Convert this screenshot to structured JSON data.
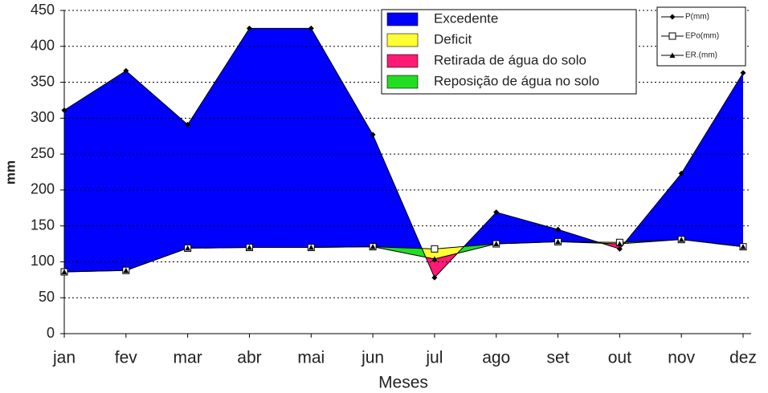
{
  "chart_data": {
    "type": "water-balance",
    "x_label": "Meses",
    "y_label": "mm",
    "categories": [
      "jan",
      "fev",
      "mar",
      "abr",
      "mai",
      "jun",
      "jul",
      "ago",
      "set",
      "out",
      "nov",
      "dez"
    ],
    "series": [
      {
        "name": "P(mm)",
        "color": "#000000",
        "marker": "diamond",
        "values": [
          311,
          366,
          291,
          425,
          425,
          277,
          78,
          169,
          145,
          118,
          223,
          363
        ]
      },
      {
        "name": "EPo(mm)",
        "color": "#000000",
        "marker": "square",
        "values": [
          86,
          88,
          119,
          120,
          120,
          121,
          118,
          125,
          128,
          127,
          131,
          121
        ]
      },
      {
        "name": "ER.(mm)",
        "color": "#000000",
        "marker": "triangle",
        "values": [
          86,
          88,
          119,
          120,
          120,
          121,
          104,
          125,
          128,
          125,
          131,
          121
        ]
      }
    ],
    "areas": [
      {
        "name": "Excedente",
        "color": "#0000ff"
      },
      {
        "name": "Deficit",
        "color": "#ffff33"
      },
      {
        "name": "Retirada de água do solo",
        "color": "#ff1a75"
      },
      {
        "name": "Reposição de água no solo",
        "color": "#22dd22"
      }
    ],
    "ylim": [
      0,
      450
    ],
    "yticks": [
      0,
      50,
      100,
      150,
      200,
      250,
      300,
      350,
      400,
      450
    ],
    "grid": true
  }
}
